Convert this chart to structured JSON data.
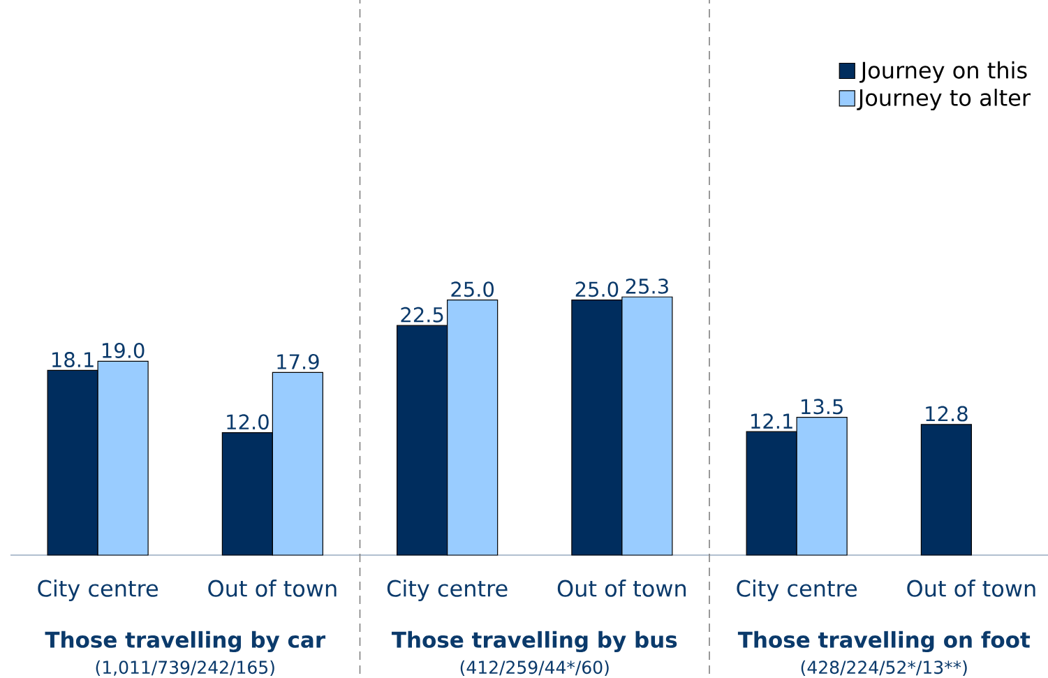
{
  "chart_data": {
    "type": "bar",
    "categories": [
      "City centre",
      "Out of town",
      "City centre",
      "Out of town",
      "City centre",
      "Out of town"
    ],
    "series": [
      {
        "name": "Journey on this",
        "color": "#002d5e",
        "values": [
          18.1,
          12.0,
          22.5,
          25.0,
          12.1,
          12.8
        ],
        "value_labels": [
          "18.1",
          "12.0",
          "22.5",
          "25.0",
          "12.1",
          "12.8"
        ]
      },
      {
        "name": "Journey to alter",
        "color": "#99ccff",
        "values": [
          19.0,
          17.9,
          25.0,
          25.3,
          13.5,
          null
        ],
        "value_labels": [
          "19.0",
          "17.9",
          "25.0",
          "25.3",
          "13.5",
          null
        ]
      }
    ],
    "legend": "top right",
    "annotations": [
      "Those travelling by car",
      "(1,011/739/242/165)",
      "Those travelling by bus",
      "(412/259/44*/60)",
      "Those travelling on foot",
      "(428/224/52*/13**)"
    ]
  }
}
